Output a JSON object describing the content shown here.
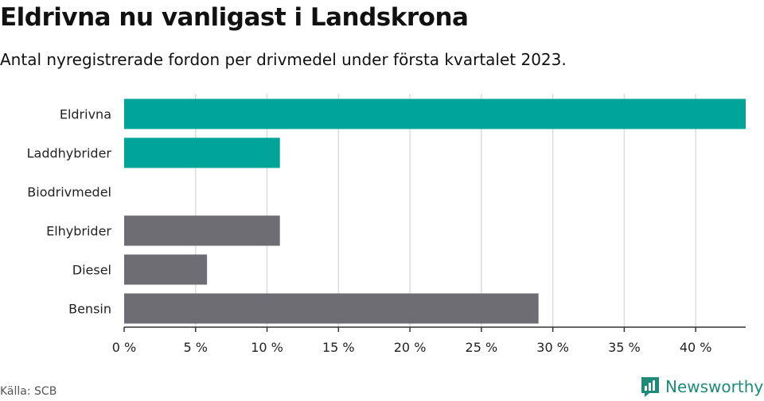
{
  "title": "Eldrivna nu vanligast i Landskrona",
  "subtitle": "Antal nyregistrerade fordon per drivmedel under första kvartalet 2023.",
  "source": "Källa: SCB",
  "brand": {
    "name": "Newsworthy",
    "icon": "newsworthy-logo-icon",
    "color": "#1e8a78"
  },
  "chart_data": {
    "type": "bar",
    "orientation": "horizontal",
    "categories": [
      "Eldrivna",
      "Laddhybrider",
      "Biodrivmedel",
      "Elhybrider",
      "Diesel",
      "Bensin"
    ],
    "values": [
      43.5,
      10.9,
      0,
      10.9,
      5.8,
      29.0
    ],
    "bar_colors": [
      "#00a499",
      "#00a499",
      "#00a499",
      "#6d6d73",
      "#6d6d73",
      "#6d6d73"
    ],
    "x_ticks": [
      0,
      5,
      10,
      15,
      20,
      25,
      30,
      35,
      40
    ],
    "x_tick_labels": [
      "0 %",
      "5 %",
      "10 %",
      "15 %",
      "20 %",
      "25 %",
      "30 %",
      "35 %",
      "40 %"
    ],
    "xlim": [
      0,
      43.5
    ],
    "xlabel": "",
    "ylabel": "",
    "grid": true
  }
}
